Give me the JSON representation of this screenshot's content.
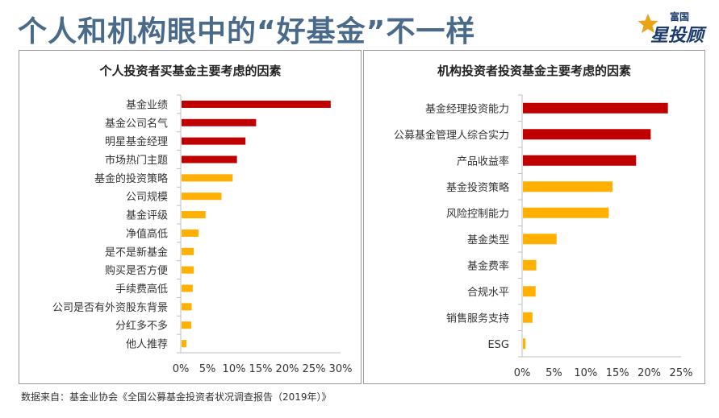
{
  "header": {
    "title": "个人和机构眼中的“好基金”不一样",
    "logo_top": "富国",
    "logo_main": "星投顾"
  },
  "colors": {
    "top": "#c00000",
    "rest": "#ffb000",
    "title": "#4a6a8a"
  },
  "chart_data": [
    {
      "type": "bar",
      "orientation": "horizontal",
      "title": "个人投资者买基金主要考虑的因素",
      "categories": [
        "基金业绩",
        "基金公司名气",
        "明星基金经理",
        "市场热门主题",
        "基金的投资策略",
        "公司规模",
        "基金评级",
        "净值高低",
        "是不是新基金",
        "购买是否方便",
        "手续费高低",
        "公司是否有外资股东背景",
        "分红多不多",
        "他人推荐"
      ],
      "values": [
        28,
        14,
        12,
        10.4,
        9.6,
        7.5,
        4.5,
        3.2,
        2.3,
        2.3,
        2.1,
        1.9,
        1.8,
        0.9
      ],
      "highlight_count": 4,
      "xlim": [
        0,
        30
      ],
      "ticks": [
        "0%",
        "5%",
        "10%",
        "15%",
        "20%",
        "25%",
        "30%"
      ]
    },
    {
      "type": "bar",
      "orientation": "horizontal",
      "title": "机构投资者投资基金主要考虑的因素",
      "categories": [
        "基金经理投资能力",
        "公募基金管理人综合实力",
        "产品收益率",
        "基金投资策略",
        "风险控制能力",
        "基金类型",
        "基金费率",
        "合规水平",
        "销售服务支持",
        "ESG"
      ],
      "values": [
        22.8,
        20.1,
        17.8,
        14.1,
        13.5,
        5.3,
        2.1,
        2.0,
        1.5,
        0.4
      ],
      "highlight_count": 3,
      "xlim": [
        0,
        25
      ],
      "ticks": [
        "0%",
        "5%",
        "10%",
        "15%",
        "20%",
        "25%"
      ]
    }
  ],
  "footer": {
    "source": "数据来自：基金业协会《全国公募基金投资者状况调查报告（2019年）》"
  }
}
